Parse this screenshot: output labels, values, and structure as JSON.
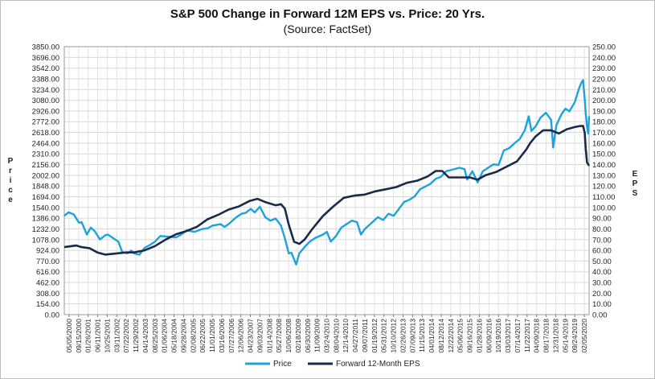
{
  "chart_data": {
    "type": "line",
    "title": "S&P 500 Change in Forward 12M EPS vs. Price: 20 Yrs.",
    "subtitle": "(Source: FactSet)",
    "ylabel_left": "Price",
    "ylabel_right": "EPS",
    "ylim_left": [
      0,
      3850
    ],
    "ylim_right": [
      0,
      250
    ],
    "yticks_left": [
      "3850.00",
      "3696.00",
      "3542.00",
      "3388.00",
      "3234.00",
      "3080.00",
      "2926.00",
      "2772.00",
      "2618.00",
      "2464.00",
      "2310.00",
      "2156.00",
      "2002.00",
      "1848.00",
      "1694.00",
      "1540.00",
      "1386.00",
      "1232.00",
      "1078.00",
      "924.00",
      "770.00",
      "616.00",
      "462.00",
      "308.00",
      "154.00",
      "0.00"
    ],
    "yticks_right": [
      "250.00",
      "240.00",
      "230.00",
      "220.00",
      "210.00",
      "200.00",
      "190.00",
      "180.00",
      "170.00",
      "160.00",
      "150.00",
      "140.00",
      "130.00",
      "120.00",
      "110.00",
      "100.00",
      "90.00",
      "80.00",
      "70.00",
      "60.00",
      "50.00",
      "40.00",
      "30.00",
      "20.00",
      "10.00",
      "0.00"
    ],
    "x_tick_labels": [
      "05/05/2000",
      "09/15/2000",
      "01/26/2001",
      "06/11/2001",
      "10/25/2001",
      "03/11/2002",
      "07/22/2002",
      "11/29/2002",
      "04/14/2003",
      "08/25/2003",
      "01/06/2004",
      "05/18/2004",
      "09/28/2004",
      "02/08/2005",
      "06/22/2005",
      "11/01/2005",
      "03/16/2006",
      "07/27/2006",
      "12/06/2006",
      "04/23/2007",
      "09/03/2007",
      "01/14/2008",
      "05/27/2008",
      "10/06/2008",
      "02/18/2009",
      "06/30/2009",
      "11/09/2009",
      "03/24/2010",
      "08/04/2010",
      "12/14/2010",
      "04/27/2011",
      "09/07/2011",
      "01/19/2012",
      "05/31/2012",
      "10/10/2012",
      "02/26/2013",
      "07/09/2013",
      "11/15/2013",
      "04/01/2014",
      "08/12/2014",
      "12/22/2014",
      "05/06/2015",
      "09/16/2015",
      "01/28/2016",
      "06/09/2016",
      "10/19/2016",
      "03/03/2017",
      "07/14/2017",
      "11/22/2017",
      "04/09/2018",
      "08/17/2018",
      "12/31/2018",
      "05/14/2019",
      "09/24/2019",
      "02/05/2020"
    ],
    "x_range_years": [
      2000.34,
      2020.35
    ],
    "series": [
      {
        "name": "Price",
        "axis": "left",
        "color": "#1ca3dc",
        "x": [
          2000.34,
          2000.5,
          2000.7,
          2000.9,
          2001.0,
          2001.2,
          2001.35,
          2001.5,
          2001.7,
          2001.9,
          2002.0,
          2002.2,
          2002.4,
          2002.55,
          2002.75,
          2002.9,
          2003.0,
          2003.2,
          2003.4,
          2003.6,
          2003.8,
          2004.0,
          2004.3,
          2004.6,
          2004.8,
          2005.0,
          2005.3,
          2005.6,
          2005.8,
          2006.0,
          2006.3,
          2006.45,
          2006.6,
          2006.9,
          2007.1,
          2007.25,
          2007.45,
          2007.6,
          2007.8,
          2008.0,
          2008.2,
          2008.4,
          2008.6,
          2008.75,
          2008.9,
          2009.0,
          2009.18,
          2009.3,
          2009.5,
          2009.7,
          2009.9,
          2010.2,
          2010.35,
          2010.5,
          2010.7,
          2010.9,
          2011.1,
          2011.3,
          2011.5,
          2011.65,
          2011.8,
          2012.0,
          2012.3,
          2012.5,
          2012.7,
          2012.9,
          2013.1,
          2013.3,
          2013.5,
          2013.7,
          2013.9,
          2014.1,
          2014.3,
          2014.5,
          2014.7,
          2014.9,
          2015.1,
          2015.4,
          2015.6,
          2015.7,
          2015.9,
          2016.1,
          2016.3,
          2016.5,
          2016.7,
          2016.9,
          2017.1,
          2017.3,
          2017.5,
          2017.7,
          2017.9,
          2018.05,
          2018.15,
          2018.3,
          2018.5,
          2018.7,
          2018.9,
          2018.98,
          2019.1,
          2019.3,
          2019.45,
          2019.6,
          2019.8,
          2019.95,
          2020.05,
          2020.12,
          2020.18,
          2020.22,
          2020.27,
          2020.32,
          2020.35
        ],
        "y": [
          1420,
          1470,
          1440,
          1320,
          1330,
          1150,
          1250,
          1200,
          1080,
          1140,
          1150,
          1100,
          1050,
          900,
          880,
          920,
          880,
          860,
          960,
          1000,
          1050,
          1130,
          1120,
          1110,
          1150,
          1210,
          1190,
          1230,
          1240,
          1280,
          1300,
          1260,
          1300,
          1400,
          1450,
          1460,
          1520,
          1470,
          1550,
          1400,
          1350,
          1380,
          1280,
          1100,
          880,
          890,
          720,
          880,
          970,
          1050,
          1100,
          1150,
          1190,
          1050,
          1130,
          1250,
          1300,
          1350,
          1330,
          1150,
          1230,
          1300,
          1400,
          1360,
          1450,
          1420,
          1520,
          1620,
          1650,
          1700,
          1800,
          1840,
          1880,
          1950,
          1980,
          2060,
          2080,
          2110,
          2090,
          1940,
          2060,
          1900,
          2060,
          2110,
          2160,
          2150,
          2360,
          2390,
          2460,
          2520,
          2650,
          2850,
          2640,
          2700,
          2830,
          2900,
          2800,
          2400,
          2720,
          2880,
          2960,
          2920,
          3050,
          3230,
          3330,
          3370,
          3100,
          2900,
          2700,
          2600,
          2850
        ]
      },
      {
        "name": "Forward 12-Month EPS",
        "axis": "right",
        "color": "#1b2a4a",
        "x": [
          2000.34,
          2000.8,
          2001.0,
          2001.3,
          2001.6,
          2001.9,
          2002.3,
          2002.7,
          2003.0,
          2003.4,
          2003.8,
          2004.2,
          2004.6,
          2005.0,
          2005.4,
          2005.8,
          2006.2,
          2006.6,
          2007.0,
          2007.4,
          2007.7,
          2008.0,
          2008.4,
          2008.6,
          2008.75,
          2008.9,
          2009.1,
          2009.3,
          2009.5,
          2009.8,
          2010.2,
          2010.6,
          2011.0,
          2011.4,
          2011.8,
          2012.2,
          2012.6,
          2013.0,
          2013.4,
          2013.8,
          2014.2,
          2014.5,
          2014.75,
          2015.0,
          2015.4,
          2015.8,
          2016.1,
          2016.4,
          2016.8,
          2017.2,
          2017.6,
          2017.95,
          2018.1,
          2018.3,
          2018.6,
          2018.9,
          2019.2,
          2019.5,
          2019.8,
          2020.0,
          2020.12,
          2020.18,
          2020.22,
          2020.27,
          2020.35
        ],
        "y": [
          63,
          64.5,
          63,
          62,
          58,
          56,
          57,
          58,
          58,
          60,
          64,
          70,
          75,
          78,
          82,
          89,
          93,
          98,
          101,
          106,
          108,
          105,
          102,
          103,
          99,
          84,
          68,
          66,
          70,
          80,
          92,
          101,
          109,
          111,
          112,
          115,
          117,
          119,
          123,
          125,
          129,
          134,
          134,
          128,
          128,
          128,
          126,
          130,
          133,
          138,
          143,
          154,
          160,
          166,
          172,
          172,
          169,
          173,
          175,
          176,
          176,
          170,
          155,
          142,
          139
        ]
      }
    ],
    "legend": [
      "Price",
      "Forward 12-Month EPS"
    ],
    "legend_position": "bottom-center",
    "grid": true
  }
}
